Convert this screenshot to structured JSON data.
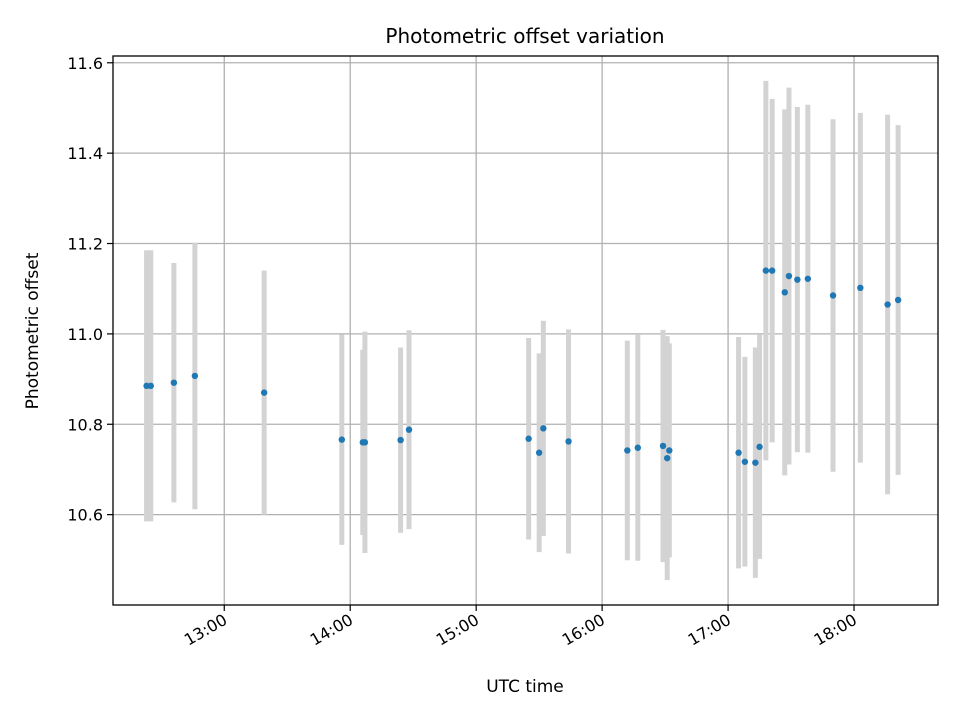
{
  "chart_data": {
    "type": "scatter",
    "title": "Photometric offset variation",
    "xlabel": "UTC time",
    "ylabel": "Photometric offset",
    "grid": true,
    "marker_color": "#1f77b4",
    "errorbar_color": "#d3d3d3",
    "x_ticks": [
      "13:00",
      "14:00",
      "15:00",
      "16:00",
      "17:00",
      "18:00"
    ],
    "x_tick_values": [
      "13:00",
      "14:00",
      "15:00",
      "16:00",
      "17:00",
      "18:00"
    ],
    "xlim": [
      "12:07",
      "18:40"
    ],
    "y_ticks": [
      "10.6",
      "10.8",
      "11.0",
      "11.2",
      "11.4",
      "11.6"
    ],
    "y_tick_values": [
      10.6,
      10.8,
      11.0,
      11.2,
      11.4,
      11.6
    ],
    "ylim": [
      10.4,
      11.615
    ],
    "points": [
      {
        "x": "12:23",
        "y": 10.885,
        "err": 0.3
      },
      {
        "x": "12:25",
        "y": 10.885,
        "err": 0.3
      },
      {
        "x": "12:36",
        "y": 10.892,
        "err": 0.265
      },
      {
        "x": "12:46",
        "y": 10.907,
        "err": 0.295
      },
      {
        "x": "13:19",
        "y": 10.87,
        "err": 0.27
      },
      {
        "x": "13:56",
        "y": 10.766,
        "err": 0.233
      },
      {
        "x": "14:06",
        "y": 10.76,
        "err": 0.205
      },
      {
        "x": "14:07",
        "y": 10.76,
        "err": 0.245
      },
      {
        "x": "14:24",
        "y": 10.765,
        "err": 0.205
      },
      {
        "x": "14:28",
        "y": 10.788,
        "err": 0.22
      },
      {
        "x": "15:25",
        "y": 10.768,
        "err": 0.223
      },
      {
        "x": "15:30",
        "y": 10.737,
        "err": 0.22
      },
      {
        "x": "15:32",
        "y": 10.791,
        "err": 0.238
      },
      {
        "x": "15:44",
        "y": 10.762,
        "err": 0.248
      },
      {
        "x": "16:12",
        "y": 10.742,
        "err": 0.243
      },
      {
        "x": "16:17",
        "y": 10.748,
        "err": 0.25
      },
      {
        "x": "16:29",
        "y": 10.752,
        "err": 0.257
      },
      {
        "x": "16:31",
        "y": 10.725,
        "err": 0.27
      },
      {
        "x": "16:32",
        "y": 10.742,
        "err": 0.237
      },
      {
        "x": "17:05",
        "y": 10.737,
        "err": 0.256
      },
      {
        "x": "17:08",
        "y": 10.717,
        "err": 0.232
      },
      {
        "x": "17:13",
        "y": 10.715,
        "err": 0.255
      },
      {
        "x": "17:15",
        "y": 10.75,
        "err": 0.248
      },
      {
        "x": "17:18",
        "y": 11.14,
        "err": 0.42
      },
      {
        "x": "17:21",
        "y": 11.14,
        "err": 0.38
      },
      {
        "x": "17:27",
        "y": 11.092,
        "err": 0.405
      },
      {
        "x": "17:29",
        "y": 11.128,
        "err": 0.417
      },
      {
        "x": "17:33",
        "y": 11.12,
        "err": 0.382
      },
      {
        "x": "17:38",
        "y": 11.122,
        "err": 0.385
      },
      {
        "x": "17:50",
        "y": 11.085,
        "err": 0.39
      },
      {
        "x": "18:03",
        "y": 11.102,
        "err": 0.387
      },
      {
        "x": "18:16",
        "y": 11.065,
        "err": 0.42
      },
      {
        "x": "18:21",
        "y": 11.075,
        "err": 0.387
      }
    ]
  }
}
